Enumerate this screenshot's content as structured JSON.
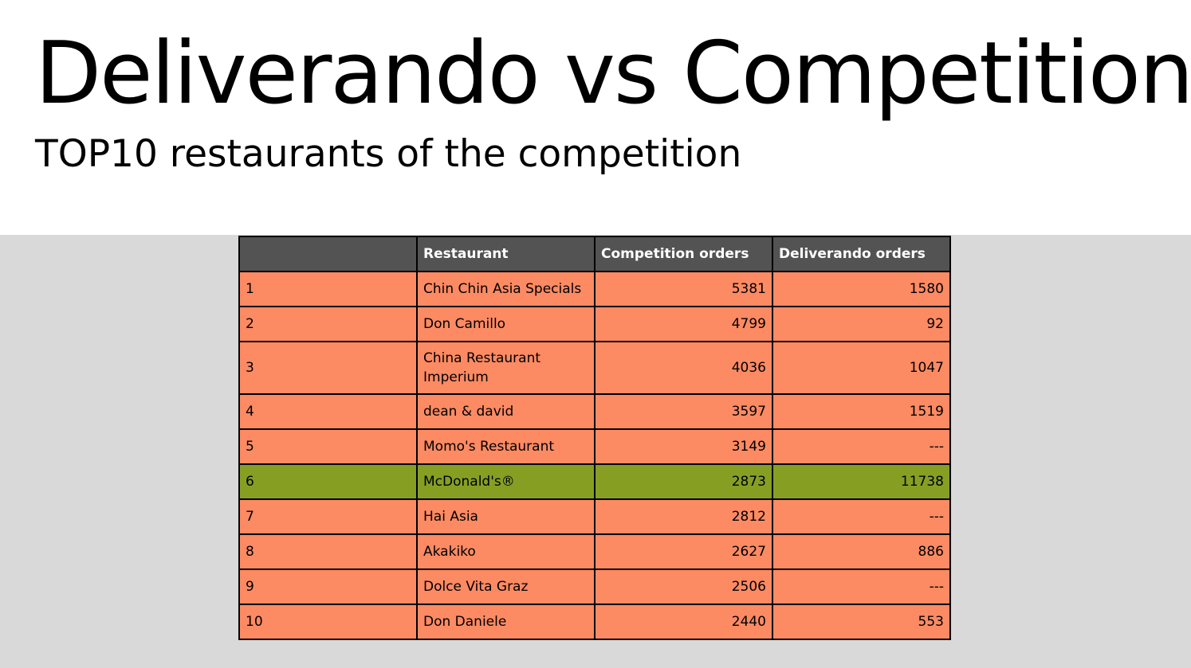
{
  "slide": {
    "title": "Deliverando vs Competition",
    "subtitle": "TOP10 restaurants of the competition"
  },
  "table": {
    "headers": [
      "",
      "Restaurant",
      "Competition orders",
      "Deliverando orders"
    ],
    "rows": [
      {
        "rank": "1",
        "restaurant": "Chin Chin Asia Specials",
        "competition_orders": "5381",
        "deliverando_orders": "1580"
      },
      {
        "rank": "2",
        "restaurant": "Don Camillo",
        "competition_orders": "4799",
        "deliverando_orders": "92"
      },
      {
        "rank": "3",
        "restaurant": "China Restaurant Imperium",
        "competition_orders": "4036",
        "deliverando_orders": "1047"
      },
      {
        "rank": "4",
        "restaurant": "dean & david",
        "competition_orders": "3597",
        "deliverando_orders": "1519"
      },
      {
        "rank": "5",
        "restaurant": "Momo's Restaurant",
        "competition_orders": "3149",
        "deliverando_orders": "---"
      },
      {
        "rank": "6",
        "restaurant": "McDonald's®",
        "competition_orders": "2873",
        "deliverando_orders": "11738"
      },
      {
        "rank": "7",
        "restaurant": "Hai Asia",
        "competition_orders": "2812",
        "deliverando_orders": "---"
      },
      {
        "rank": "8",
        "restaurant": "Akakiko",
        "competition_orders": "2627",
        "deliverando_orders": "886"
      },
      {
        "rank": "9",
        "restaurant": "Dolce Vita Graz",
        "competition_orders": "2506",
        "deliverando_orders": "---"
      },
      {
        "rank": "10",
        "restaurant": "Don Daniele",
        "competition_orders": "2440",
        "deliverando_orders": "553"
      }
    ]
  },
  "colors": {
    "header_bg": "#535353",
    "row_bg": "#fc8a63",
    "highlight_row_bg": "#869f23",
    "band_bg": "#d9d9d9"
  }
}
